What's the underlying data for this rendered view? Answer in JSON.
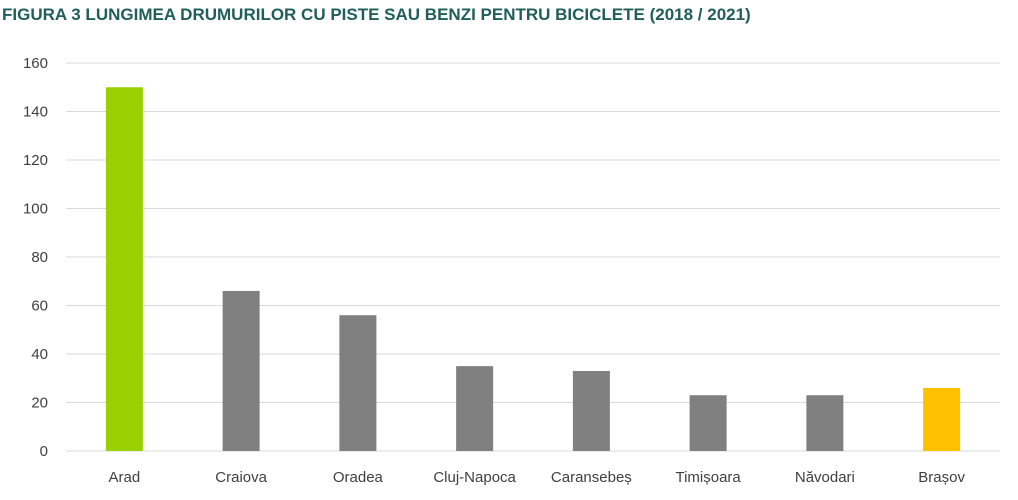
{
  "title": "FIGURA 3 LUNGIMEA DRUMURILOR CU PISTE SAU BENZI PENTRU BICICLETE (2018 / 2021)",
  "colors": {
    "default_bar": "#808080",
    "highlight_bar_arad": "#99d100",
    "highlight_bar_brasov": "#ffc000",
    "title": "#1f5e5a"
  },
  "chart_data": {
    "type": "bar",
    "title": "FIGURA 3 LUNGIMEA DRUMURILOR CU PISTE SAU BENZI PENTRU BICICLETE (2018 / 2021)",
    "xlabel": "",
    "ylabel": "",
    "categories": [
      "Arad",
      "Craiova",
      "Oradea",
      "Cluj-Napoca",
      "Caransebeș",
      "Timișoara",
      "Năvodari",
      "Brașov"
    ],
    "values": [
      150,
      66,
      56,
      35,
      33,
      23,
      23,
      26
    ],
    "bar_colors": [
      "#99d100",
      "#808080",
      "#808080",
      "#808080",
      "#808080",
      "#808080",
      "#808080",
      "#ffc000"
    ],
    "ylim": [
      0,
      160
    ],
    "yticks": [
      0,
      20,
      40,
      60,
      80,
      100,
      120,
      140,
      160
    ],
    "grid": true,
    "legend": "none"
  }
}
